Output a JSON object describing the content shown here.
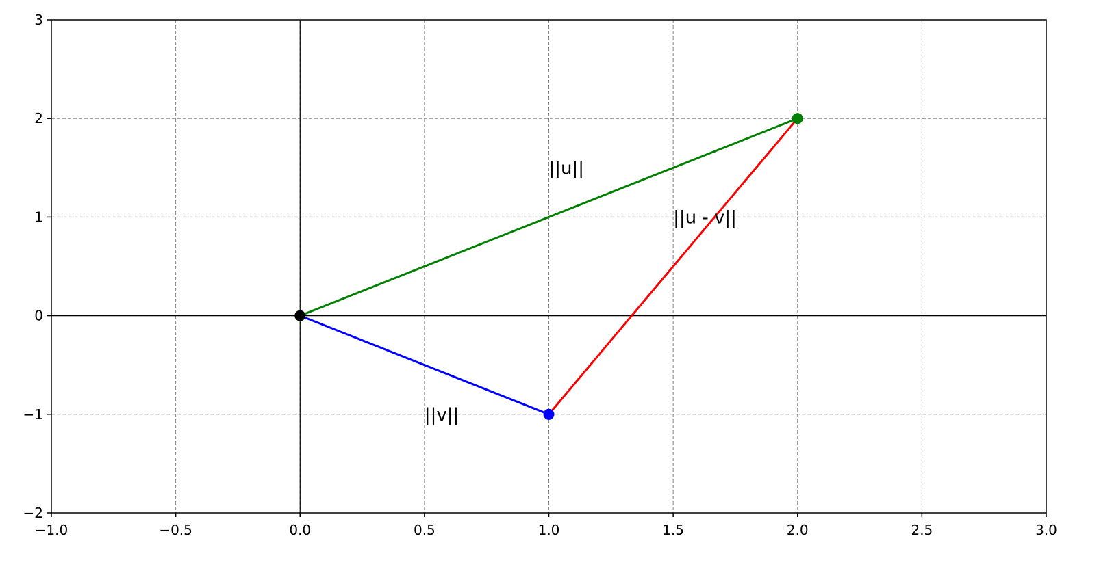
{
  "chart_data": {
    "type": "line",
    "title": "",
    "xlabel": "",
    "ylabel": "",
    "xlim": [
      -1.0,
      3.0
    ],
    "ylim": [
      -2,
      3
    ],
    "grid": true,
    "legend": "none",
    "x_ticks": [
      -1.0,
      -0.5,
      0.0,
      0.5,
      1.0,
      1.5,
      2.0,
      2.5,
      3.0
    ],
    "x_tick_labels": [
      "−1.0",
      "−0.5",
      "0.0",
      "0.5",
      "1.0",
      "1.5",
      "2.0",
      "2.5",
      "3.0"
    ],
    "y_ticks": [
      -2,
      -1,
      0,
      1,
      2,
      3
    ],
    "y_tick_labels": [
      "−2",
      "−1",
      "0",
      "1",
      "2",
      "3"
    ],
    "series": [
      {
        "x": [
          0,
          2
        ],
        "y": [
          0,
          2
        ],
        "color": "#008000"
      },
      {
        "x": [
          0,
          1
        ],
        "y": [
          0,
          -1
        ],
        "color": "#0000ff"
      },
      {
        "x": [
          1,
          2
        ],
        "y": [
          -1,
          2
        ],
        "color": "#ff0000"
      }
    ],
    "points": [
      {
        "x": 0,
        "y": 0,
        "color": "#000000"
      },
      {
        "x": 2,
        "y": 2,
        "color": "#008000"
      },
      {
        "x": 1,
        "y": -1,
        "color": "#0000ff"
      }
    ],
    "annotations": [
      {
        "text": "||u||",
        "x": 1.0,
        "y": 1.5
      },
      {
        "text": "||v||",
        "x": 0.5,
        "y": -1.0
      },
      {
        "text": "||u - v||",
        "x": 1.5,
        "y": 1.0
      }
    ]
  }
}
